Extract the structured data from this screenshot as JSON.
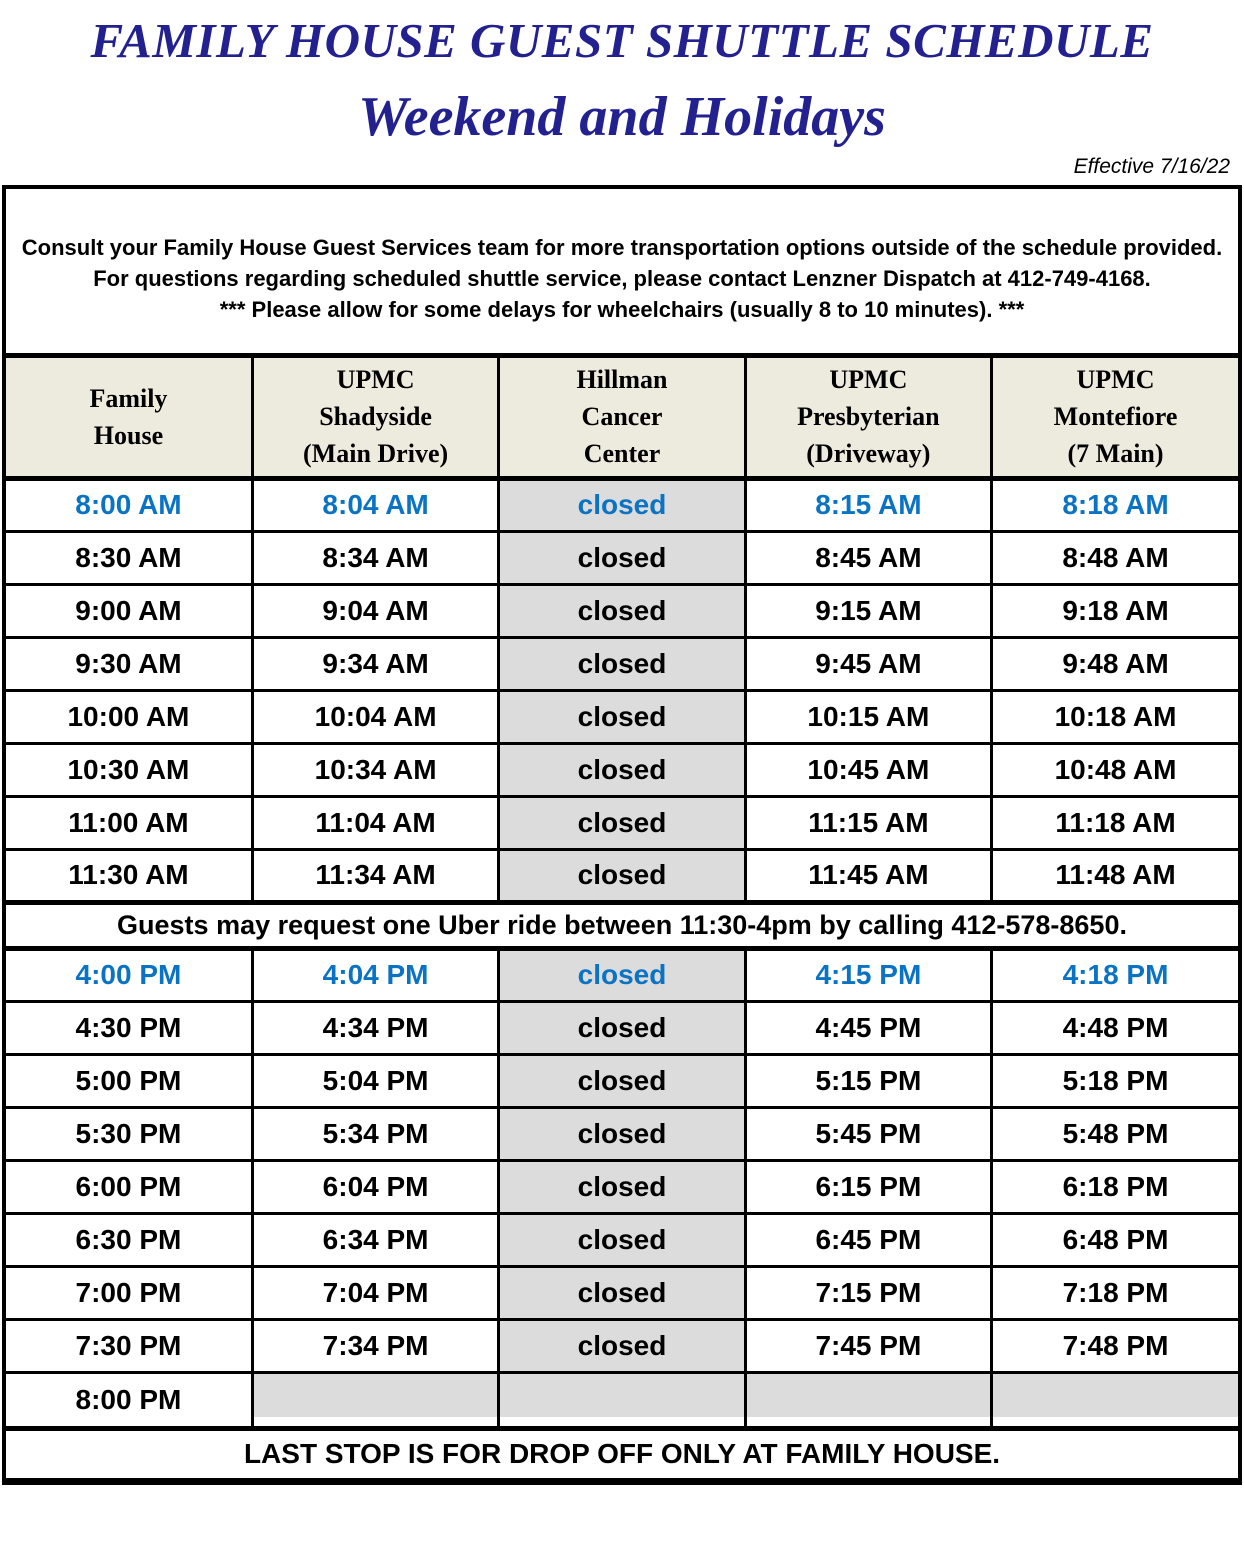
{
  "header": {
    "title": "FAMILY HOUSE GUEST SHUTTLE SCHEDULE",
    "subtitle": "Weekend and Holidays",
    "effective": "Effective 7/16/22"
  },
  "notice": {
    "lines": [
      "Consult your Family House Guest Services team for more transportation options outside of the schedule provided.",
      "For questions regarding scheduled shuttle service, please contact Lenzner Dispatch at 412-749-4168.",
      "*** Please allow for some delays for wheelchairs (usually 8 to 10 minutes). ***"
    ]
  },
  "table": {
    "columns": [
      {
        "label": "Family\nHouse"
      },
      {
        "label": "UPMC\nShadyside\n(Main Drive)"
      },
      {
        "label": "Hillman\nCancer\nCenter"
      },
      {
        "label": "UPMC\nPresbyterian\n(Driveway)"
      },
      {
        "label": "UPMC\nMontefiore\n(7 Main)"
      }
    ],
    "rows": [
      {
        "type": "times",
        "highlight": true,
        "cells": [
          "8:00 AM",
          "8:04 AM",
          "closed",
          "8:15 AM",
          "8:18 AM"
        ]
      },
      {
        "type": "times",
        "highlight": false,
        "cells": [
          "8:30 AM",
          "8:34 AM",
          "closed",
          "8:45 AM",
          "8:48 AM"
        ]
      },
      {
        "type": "times",
        "highlight": false,
        "cells": [
          "9:00 AM",
          "9:04 AM",
          "closed",
          "9:15 AM",
          "9:18 AM"
        ]
      },
      {
        "type": "times",
        "highlight": false,
        "cells": [
          "9:30 AM",
          "9:34 AM",
          "closed",
          "9:45 AM",
          "9:48 AM"
        ]
      },
      {
        "type": "times",
        "highlight": false,
        "cells": [
          "10:00 AM",
          "10:04 AM",
          "closed",
          "10:15 AM",
          "10:18 AM"
        ]
      },
      {
        "type": "times",
        "highlight": false,
        "cells": [
          "10:30 AM",
          "10:34 AM",
          "closed",
          "10:45 AM",
          "10:48 AM"
        ]
      },
      {
        "type": "times",
        "highlight": false,
        "cells": [
          "11:00 AM",
          "11:04 AM",
          "closed",
          "11:15 AM",
          "11:18 AM"
        ]
      },
      {
        "type": "times",
        "highlight": false,
        "cells": [
          "11:30 AM",
          "11:34 AM",
          "closed",
          "11:45 AM",
          "11:48 AM"
        ]
      },
      {
        "type": "note",
        "text": "Guests may request one Uber ride between 11:30-4pm by calling 412-578-8650."
      },
      {
        "type": "times",
        "highlight": true,
        "cells": [
          "4:00 PM",
          "4:04 PM",
          "closed",
          "4:15 PM",
          "4:18 PM"
        ]
      },
      {
        "type": "times",
        "highlight": false,
        "cells": [
          "4:30 PM",
          "4:34 PM",
          "closed",
          "4:45 PM",
          "4:48 PM"
        ]
      },
      {
        "type": "times",
        "highlight": false,
        "cells": [
          "5:00 PM",
          "5:04 PM",
          "closed",
          "5:15 PM",
          "5:18 PM"
        ]
      },
      {
        "type": "times",
        "highlight": false,
        "cells": [
          "5:30 PM",
          "5:34 PM",
          "closed",
          "5:45 PM",
          "5:48 PM"
        ]
      },
      {
        "type": "times",
        "highlight": false,
        "cells": [
          "6:00 PM",
          "6:04 PM",
          "closed",
          "6:15 PM",
          "6:18 PM"
        ]
      },
      {
        "type": "times",
        "highlight": false,
        "cells": [
          "6:30 PM",
          "6:34 PM",
          "closed",
          "6:45 PM",
          "6:48 PM"
        ]
      },
      {
        "type": "times",
        "highlight": false,
        "cells": [
          "7:00 PM",
          "7:04 PM",
          "closed",
          "7:15 PM",
          "7:18 PM"
        ]
      },
      {
        "type": "times",
        "highlight": false,
        "cells": [
          "7:30 PM",
          "7:34 PM",
          "closed",
          "7:45 PM",
          "7:48 PM"
        ]
      },
      {
        "type": "last",
        "cells": [
          "8:00 PM",
          "",
          "",
          "",
          ""
        ]
      },
      {
        "type": "footer",
        "text": "LAST STOP IS FOR DROP OFF ONLY AT FAMILY HOUSE."
      }
    ]
  },
  "colors": {
    "title_navy": "#22218F",
    "highlight_blue": "#0B73C4",
    "header_bg": "#EDEADE",
    "closed_gray": "#DCDCDC"
  }
}
